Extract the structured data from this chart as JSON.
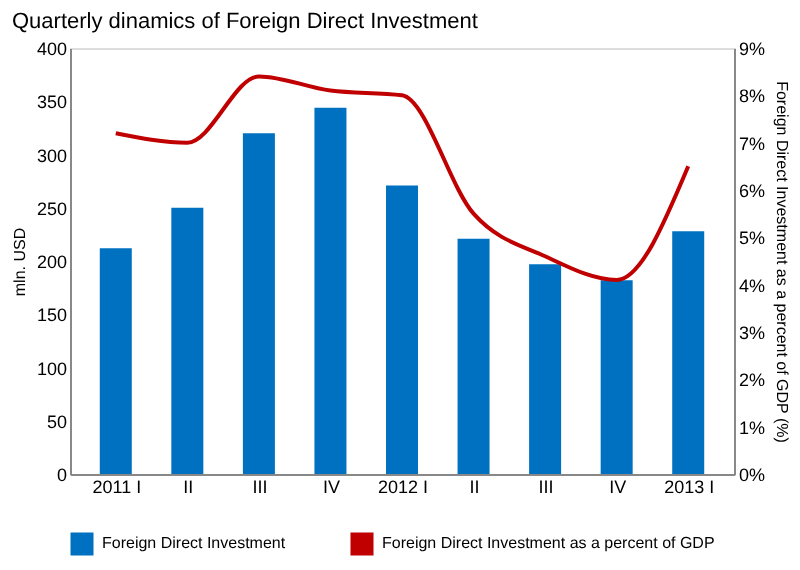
{
  "chart_data": {
    "type": "bar",
    "title": "Quarterly dinamics of Foreign Direct Investment",
    "categories": [
      "2011 I",
      "II",
      "III",
      "IV",
      "2012 I",
      "II",
      "III",
      "IV",
      "2013 I"
    ],
    "ylabel": "mln. USD",
    "y2label": "Foreign Direct Investment as a percent of GDP (%)",
    "ylim": [
      0,
      400
    ],
    "yticks": [
      0,
      50,
      100,
      150,
      200,
      250,
      300,
      350,
      400
    ],
    "y2lim": [
      0,
      9
    ],
    "y2ticks": [
      {
        "value": 0,
        "label": "0%"
      },
      {
        "value": 1,
        "label": "1%"
      },
      {
        "value": 2,
        "label": "2%"
      },
      {
        "value": 3,
        "label": "3%"
      },
      {
        "value": 4,
        "label": "4%"
      },
      {
        "value": 5,
        "label": "5%"
      },
      {
        "value": 6,
        "label": "6%"
      },
      {
        "value": 7,
        "label": "7%"
      },
      {
        "value": 8,
        "label": "8%"
      },
      {
        "value": 9,
        "label": "9%"
      }
    ],
    "series": [
      {
        "name": "Foreign Direct Investment",
        "color": "#0070c0",
        "values": [
          212,
          250,
          320,
          344,
          271,
          221,
          197,
          182,
          228
        ]
      },
      {
        "name": "Foreign Direct Investment as a percent of GDP",
        "type": "line",
        "axis": "y2",
        "color": "#c00000",
        "marker": "none",
        "values": [
          7.2,
          7.0,
          8.4,
          8.1,
          8.0,
          5.5,
          4.6,
          4.1,
          6.5
        ]
      }
    ],
    "grid": false,
    "legend": "bottom"
  }
}
